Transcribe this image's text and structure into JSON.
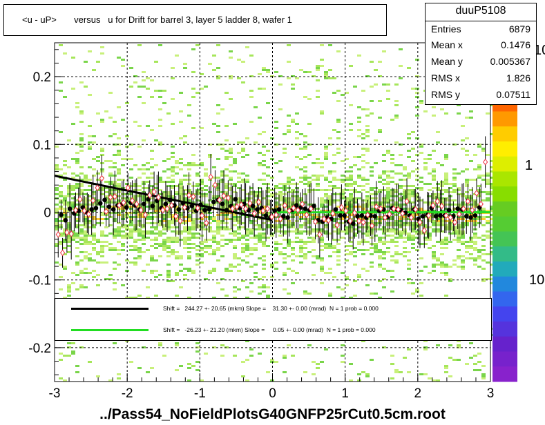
{
  "title": "<u - uP>       versus   u for Drift for barrel 3, layer 5 ladder 8, wafer 1",
  "footer": "../Pass54_NoFieldPlotsG40GNFP25rCut0.5cm.root",
  "stats": {
    "name": "duuP5108",
    "rows": [
      {
        "label": "Entries",
        "value": "6879"
      },
      {
        "label": "Mean x",
        "value": "0.1476"
      },
      {
        "label": "Mean y",
        "value": "0.005367"
      },
      {
        "label": "RMS x",
        "value": "1.826"
      },
      {
        "label": "RMS y",
        "value": "0.07511"
      }
    ]
  },
  "legend": {
    "entries": [
      {
        "color": "#000000",
        "text": "Shift =   244.27 +- 20.65 (mkm) Slope =    31.30 +- 0.00 (mrad)  N = 1 prob = 0.000"
      },
      {
        "color": "#22dd22",
        "text": "Shift =   -26.23 +- 21.20 (mkm) Slope =     0.05 +- 0.00 (mrad)  N = 1 prob = 0.000"
      }
    ]
  },
  "colorbar": {
    "labels": [
      "10",
      "1",
      "10"
    ]
  },
  "chart_data": {
    "type": "scatter",
    "xlim": [
      -3,
      3
    ],
    "ylim": [
      -0.25,
      0.25
    ],
    "xticks": [
      "-3",
      "-2",
      "-1",
      "0",
      "1",
      "2",
      "3"
    ],
    "yticks": [
      "-0.2",
      "-0.1",
      "0",
      "0.1",
      "0.2"
    ],
    "grid": true,
    "series": [
      {
        "marker": "filled-circle",
        "color": "#000000",
        "x": [
          -2.91,
          -2.85,
          -2.79,
          -2.73,
          -2.67,
          -2.61,
          -2.55,
          -2.49,
          -2.43,
          -2.37,
          -2.31,
          -2.25,
          -2.19,
          -2.13,
          -2.07,
          -2.01,
          -1.95,
          -1.89,
          -1.83,
          -1.77,
          -1.71,
          -1.65,
          -1.59,
          -1.53,
          -1.47,
          -1.41,
          -1.35,
          -1.29,
          -1.23,
          -1.17,
          -1.11,
          -1.05,
          -0.99,
          -0.93,
          -0.87,
          -0.81,
          -0.75,
          -0.69,
          -0.63,
          -0.57,
          -0.51,
          -0.45,
          -0.39,
          -0.33,
          -0.27,
          -0.21,
          -0.15,
          -0.09,
          -0.03,
          0.03,
          0.09,
          0.15,
          0.21,
          0.27,
          0.33,
          0.39,
          0.45,
          0.51,
          0.57,
          0.63,
          0.69,
          0.75,
          0.81,
          0.87,
          0.93,
          0.99,
          1.05,
          1.11,
          1.17,
          1.23,
          1.29,
          1.35,
          1.41,
          1.47,
          1.53,
          1.59,
          1.65,
          1.71,
          1.77,
          1.83,
          1.89,
          1.95,
          2.01,
          2.07,
          2.13,
          2.19,
          2.25,
          2.31,
          2.37,
          2.43,
          2.49,
          2.55,
          2.61,
          2.67,
          2.73,
          2.79,
          2.85
        ],
        "y": [
          -0.004,
          -0.012,
          0.005,
          -0.002,
          0.002,
          0.007,
          -0.001,
          0.004,
          0.006,
          0.013,
          0.018,
          0.008,
          0.004,
          0.01,
          0.012,
          0.007,
          0.014,
          0.01,
          0.004,
          0.012,
          0.019,
          0.009,
          0.017,
          0.006,
          0.012,
          0.018,
          0.01,
          0.004,
          0.013,
          0.006,
          0.009,
          0.002,
          0.011,
          0.003,
          0.004,
          0.015,
          0.018,
          0.012,
          0.003,
          0.009,
          0.019,
          0.006,
          0.012,
          0.003,
          0.009,
          0.004,
          0.006,
          -0.005,
          -0.008,
          0.002,
          0.004,
          -0.006,
          -0.008,
          0.003,
          0.01,
          0.007,
          0.005,
          0.003,
          0.009,
          -0.012,
          -0.014,
          -0.008,
          -0.01,
          0.004,
          -0.005,
          -0.005,
          -0.014,
          -0.017,
          -0.006,
          -0.005,
          -0.008,
          -0.005,
          -0.006,
          0.002,
          0.004,
          -0.007,
          0.006,
          0.004,
          0.003,
          -0.001,
          -0.005,
          0.004,
          -0.01,
          -0.006,
          -0.004,
          0.006,
          -0.006,
          -0.005,
          -0.005,
          0.003,
          -0.006,
          0.005,
          0.004,
          -0.006,
          -0.008,
          -0.005,
          0.007
        ]
      },
      {
        "marker": "open-diamond",
        "color": "#ee3344",
        "x": [
          -2.95,
          -2.89,
          -2.83,
          -2.77,
          -2.71,
          -2.65,
          -2.59,
          -2.53,
          -2.47,
          -2.41,
          -2.35,
          -2.29,
          -2.23,
          -2.17,
          -2.11,
          -2.05,
          -1.99,
          -1.93,
          -1.87,
          -1.81,
          -1.75,
          -1.69,
          -1.63,
          -1.57,
          -1.51,
          -1.45,
          -1.39,
          -1.33,
          -1.27,
          -1.21,
          -1.15,
          -1.09,
          -1.03,
          -0.97,
          -0.91,
          -0.85,
          -0.79,
          -0.73,
          -0.67,
          -0.61,
          -0.55,
          -0.49,
          -0.43,
          -0.37,
          -0.31,
          -0.25,
          -0.19,
          -0.13,
          -0.07,
          -0.01,
          0.05,
          0.11,
          0.17,
          0.23,
          0.29,
          0.35,
          0.41,
          0.47,
          0.53,
          0.59,
          0.65,
          0.71,
          0.77,
          0.83,
          0.89,
          0.95,
          1.01,
          1.07,
          1.13,
          1.19,
          1.25,
          1.31,
          1.37,
          1.43,
          1.49,
          1.55,
          1.61,
          1.67,
          1.73,
          1.79,
          1.85,
          1.91,
          1.97,
          2.03,
          2.09,
          2.15,
          2.21,
          2.27,
          2.33,
          2.39,
          2.45,
          2.51,
          2.57,
          2.63,
          2.69,
          2.75,
          2.81,
          2.87,
          2.93
        ],
        "y": [
          -0.033,
          -0.06,
          -0.03,
          -0.032,
          0.003,
          0.019,
          0.002,
          -0.003,
          0.017,
          0.036,
          0.05,
          0.001,
          0.022,
          0.023,
          0.01,
          0.014,
          0.036,
          0.017,
          0.012,
          0.003,
          -0.004,
          0.025,
          0.03,
          0.022,
          0.003,
          0.005,
          0.01,
          -0.006,
          -0.013,
          0.007,
          0.025,
          0.023,
          0.006,
          -0.005,
          -0.016,
          0.052,
          0.04,
          0.018,
          0.024,
          0.021,
          0.005,
          0.008,
          0.011,
          0.005,
          0.013,
          -0.002,
          0.015,
          0.002,
          0.005,
          -0.007,
          -0.004,
          -0.01,
          0.01,
          0.002,
          0.006,
          0.003,
          0.012,
          -0.004,
          0.005,
          -0.014,
          -0.033,
          -0.01,
          -0.012,
          -0.002,
          -0.019,
          0.007,
          0.002,
          -0.013,
          -0.001,
          -0.013,
          -0.015,
          -0.004,
          -0.02,
          0.008,
          0.005,
          -0.008,
          -0.003,
          0.005,
          0.004,
          -0.002,
          0.016,
          -0.008,
          0.004,
          -0.015,
          -0.027,
          -0.005,
          0.01,
          0.016,
          0.009,
          -0.005,
          -0.008,
          -0.015,
          -0.003,
          0.005,
          0.016,
          0.003,
          0.028,
          0.012,
          0.074
        ]
      }
    ],
    "fits": [
      {
        "color": "#000000",
        "x": [
          -3,
          0
        ],
        "y": [
          0.0537,
          -0.0117
        ]
      },
      {
        "color": "#22dd22",
        "x": [
          0,
          3
        ],
        "y": [
          -0.0003,
          -0.0001
        ]
      }
    ]
  }
}
